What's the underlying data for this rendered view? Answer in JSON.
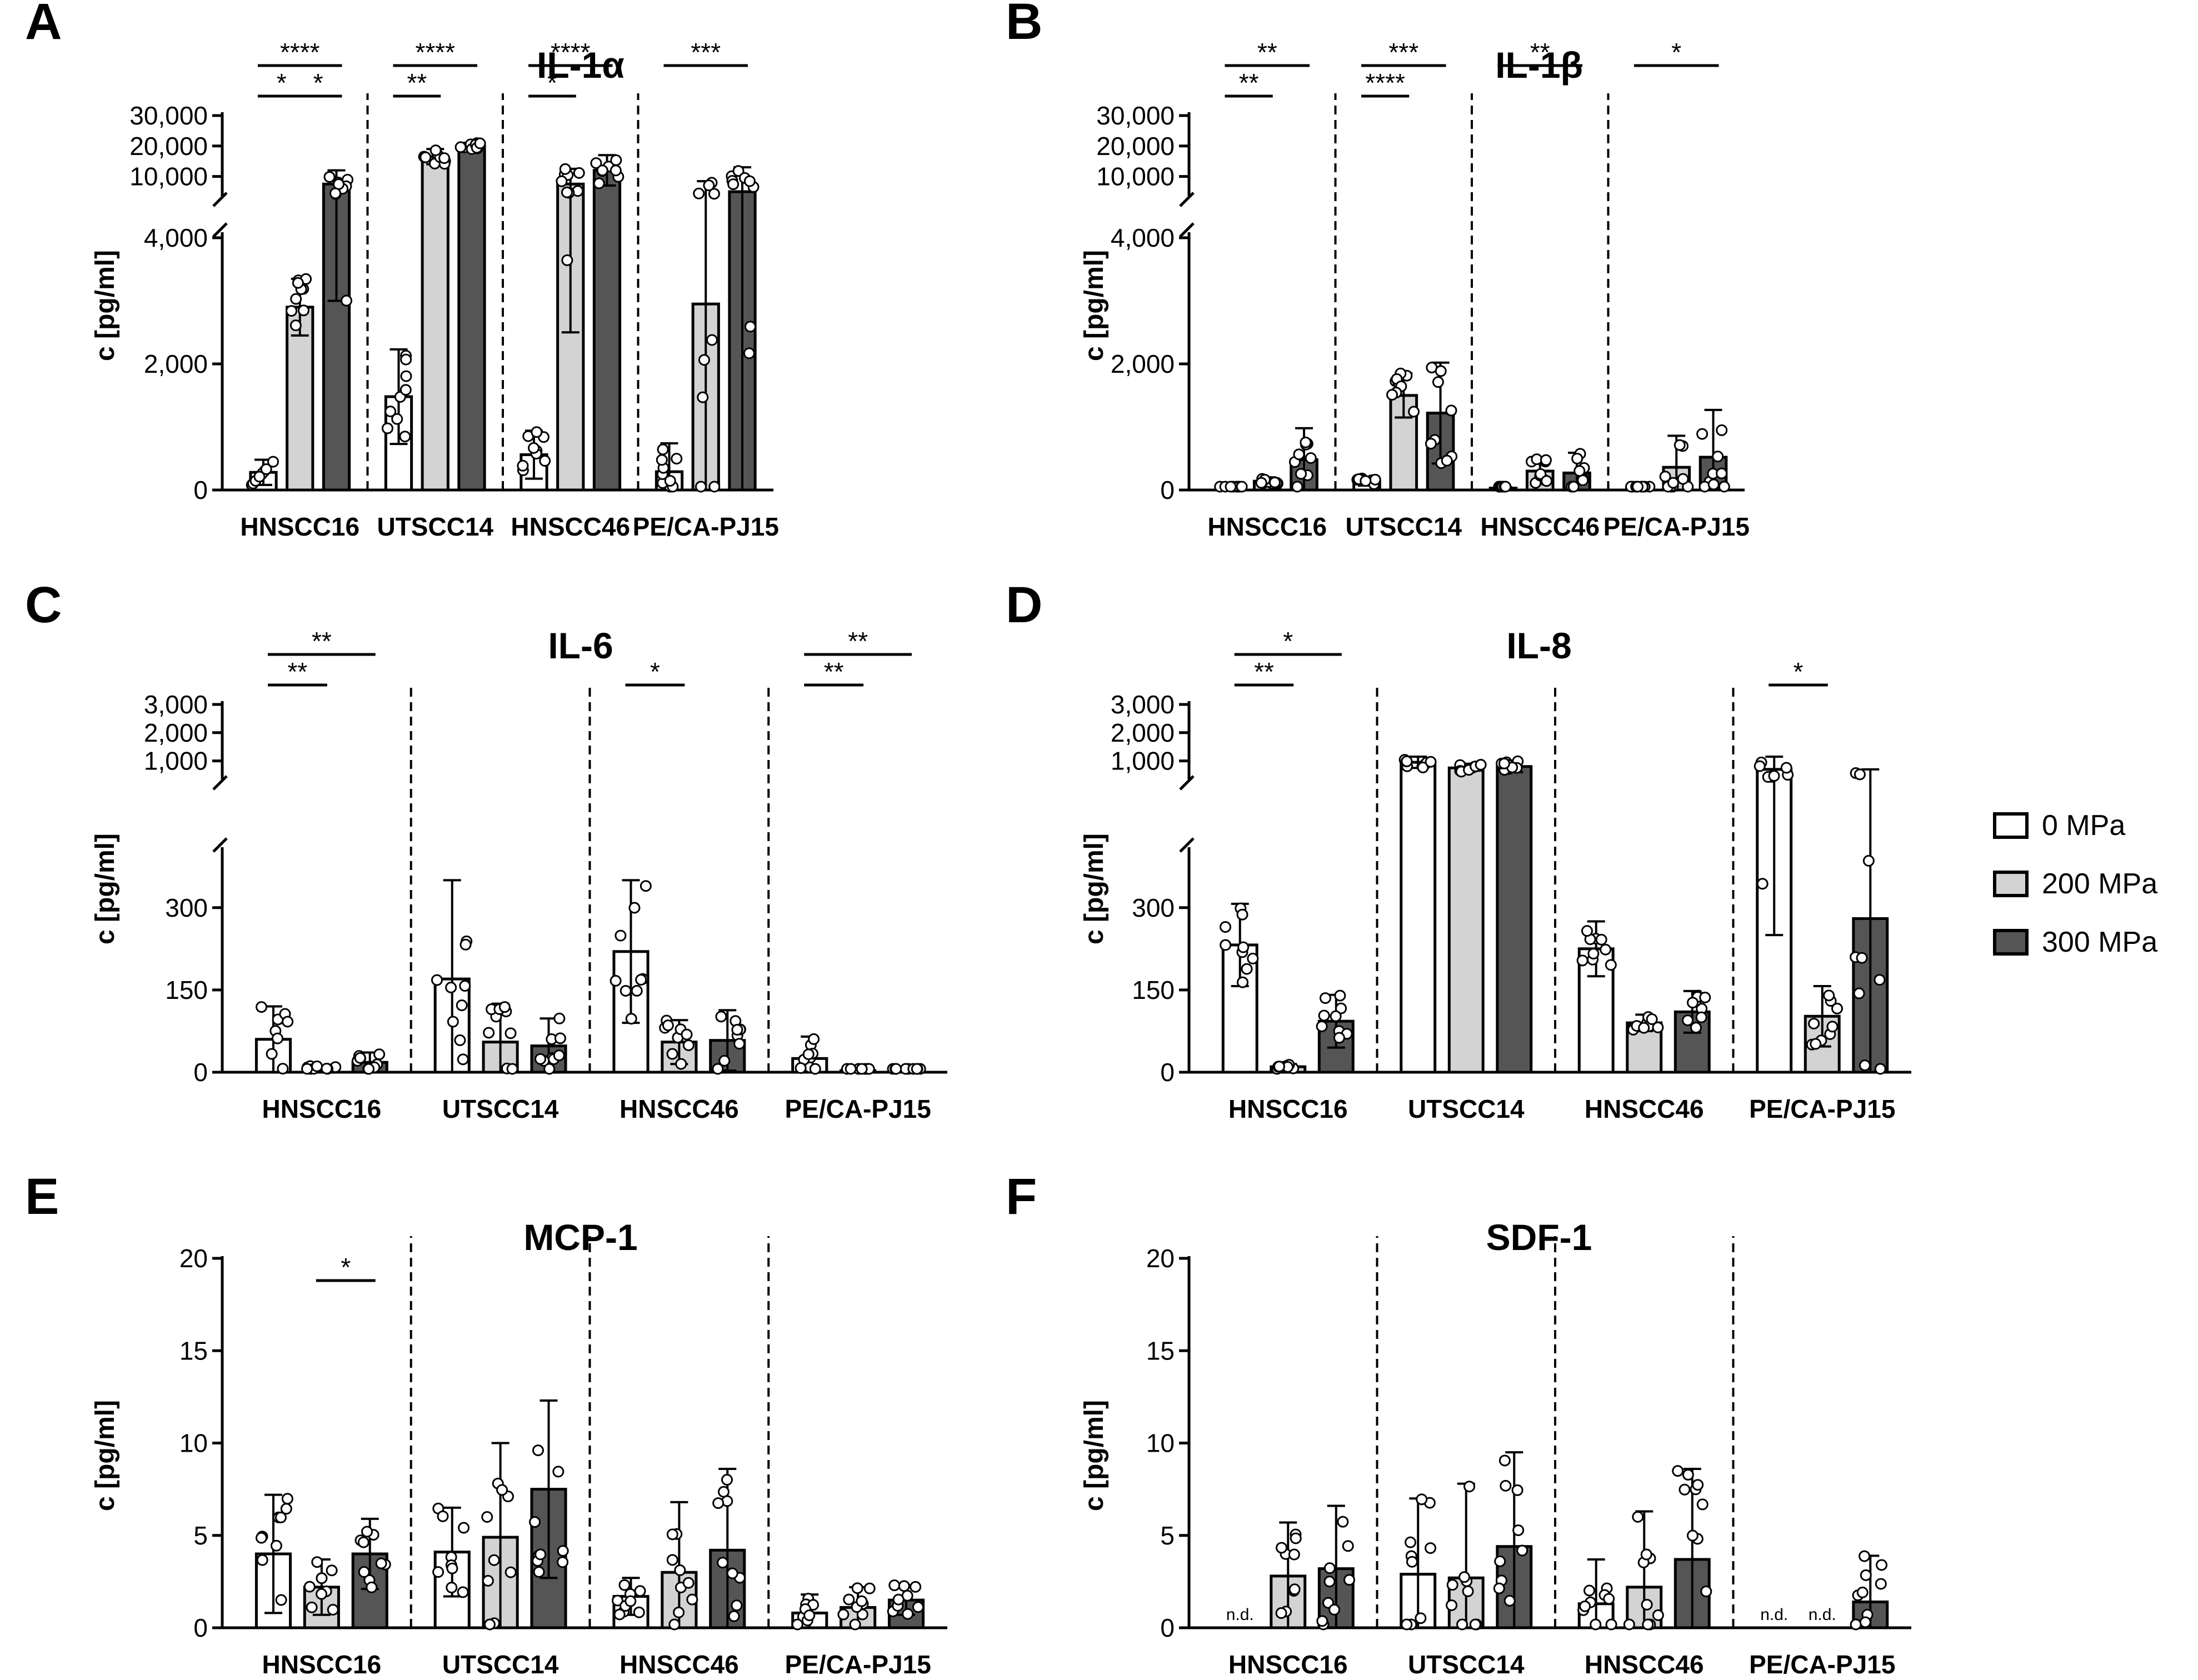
{
  "figure": {
    "groups": [
      "HNSCC16",
      "UTSCC14",
      "HNSCC46",
      "PE/CA-PJ15"
    ],
    "legend": {
      "items": [
        {
          "label": "0 MPa",
          "color": "#ffffff"
        },
        {
          "label": "200 MPa",
          "color": "#d3d3d3"
        },
        {
          "label": "300 MPa",
          "color": "#555555"
        }
      ]
    },
    "ylabel": "c [pg/ml]",
    "nd_label": "n.d."
  },
  "chart_data": [
    {
      "panel": "A",
      "title": "IL-1α",
      "type": "bar",
      "ylabel": "c [pg/ml]",
      "categories": [
        "HNSCC16",
        "UTSCC14",
        "HNSCC46",
        "PE/CA-PJ15"
      ],
      "axis_broken": true,
      "lower_ticks": [
        0,
        2000,
        4000
      ],
      "lower_tick_labels": [
        "0",
        "2,000",
        "4,000"
      ],
      "lower_range": [
        0,
        4000
      ],
      "upper_ticks": [
        10000,
        20000,
        30000
      ],
      "upper_tick_labels": [
        "10,000",
        "20,000",
        "30,000"
      ],
      "upper_range": [
        5000,
        30000
      ],
      "series": [
        {
          "name": "0 MPa",
          "values": [
            280,
            1480,
            560,
            290
          ],
          "err": [
            200,
            750,
            380,
            450
          ]
        },
        {
          "name": "200 MPa",
          "values": [
            2900,
            16500,
            7500,
            2950
          ],
          "err": [
            450,
            2500,
            5000,
            5500
          ]
        },
        {
          "name": "300 MPa",
          "values": [
            7500,
            20000,
            12000,
            5000
          ],
          "err": [
            4500,
            1000,
            5000,
            8000
          ]
        }
      ],
      "significance": [
        {
          "g": 0,
          "from": 0,
          "to": 2,
          "label": "****",
          "row": 2
        },
        {
          "g": 0,
          "from": 0,
          "to": 1,
          "label": "*",
          "row": 1
        },
        {
          "g": 0,
          "from": 1,
          "to": 2,
          "label": "*",
          "row": 1
        },
        {
          "g": 1,
          "from": 0,
          "to": 2,
          "label": "****",
          "row": 2
        },
        {
          "g": 1,
          "from": 0,
          "to": 1,
          "label": "**",
          "row": 1
        },
        {
          "g": 2,
          "from": 0,
          "to": 2,
          "label": "****",
          "row": 2
        },
        {
          "g": 2,
          "from": 0,
          "to": 1,
          "label": "*",
          "row": 1
        },
        {
          "g": 3,
          "from": 0,
          "to": 2,
          "label": "***",
          "row": 2
        }
      ]
    },
    {
      "panel": "B",
      "title": "IL-1β",
      "type": "bar",
      "ylabel": "c [pg/ml]",
      "categories": [
        "HNSCC16",
        "UTSCC14",
        "HNSCC46",
        "PE/CA-PJ15"
      ],
      "axis_broken": true,
      "lower_ticks": [
        0,
        2000,
        4000
      ],
      "lower_tick_labels": [
        "0",
        "2,000",
        "4,000"
      ],
      "lower_range": [
        0,
        4000
      ],
      "upper_ticks": [
        10000,
        20000,
        30000
      ],
      "upper_tick_labels": [
        "10,000",
        "20,000",
        "30,000"
      ],
      "upper_range": [
        5000,
        30000
      ],
      "series": [
        {
          "name": "0 MPa",
          "values": [
            30,
            130,
            30,
            20
          ],
          "err": [
            20,
            60,
            15,
            15
          ]
        },
        {
          "name": "200 MPa",
          "values": [
            140,
            1500,
            300,
            360
          ],
          "err": [
            60,
            350,
            200,
            500
          ]
        },
        {
          "name": "300 MPa",
          "values": [
            480,
            1220,
            270,
            520
          ],
          "err": [
            500,
            800,
            320,
            750
          ]
        }
      ],
      "significance": [
        {
          "g": 0,
          "from": 0,
          "to": 2,
          "label": "**",
          "row": 2
        },
        {
          "g": 0,
          "from": 0,
          "to": 1,
          "label": "**",
          "row": 1
        },
        {
          "g": 1,
          "from": 0,
          "to": 2,
          "label": "***",
          "row": 2
        },
        {
          "g": 1,
          "from": 0,
          "to": 1,
          "label": "****",
          "row": 1
        },
        {
          "g": 2,
          "from": 0,
          "to": 2,
          "label": "**",
          "row": 2
        },
        {
          "g": 3,
          "from": 0,
          "to": 2,
          "label": "*",
          "row": 2
        }
      ]
    },
    {
      "panel": "C",
      "title": "IL-6",
      "type": "bar",
      "ylabel": "c [pg/ml]",
      "categories": [
        "HNSCC16",
        "UTSCC14",
        "HNSCC46",
        "PE/CA-PJ15"
      ],
      "axis_broken": true,
      "lower_ticks": [
        0,
        150,
        300
      ],
      "lower_tick_labels": [
        "0",
        "150",
        "300"
      ],
      "lower_range": [
        0,
        400
      ],
      "upper_ticks": [
        1000,
        2000,
        3000
      ],
      "upper_tick_labels": [
        "1,000",
        "2,000",
        "3,000"
      ],
      "upper_range": [
        500,
        3000
      ],
      "series": [
        {
          "name": "0 MPa",
          "values": [
            60,
            170,
            220,
            25
          ],
          "err": [
            60,
            180,
            130,
            40
          ]
        },
        {
          "name": "200 MPa",
          "values": [
            8,
            55,
            55,
            3
          ],
          "err": [
            4,
            70,
            40,
            2
          ]
        },
        {
          "name": "300 MPa",
          "values": [
            18,
            48,
            58,
            3
          ],
          "err": [
            18,
            50,
            55,
            2
          ]
        }
      ],
      "significance": [
        {
          "g": 0,
          "from": 0,
          "to": 2,
          "label": "**",
          "row": 2
        },
        {
          "g": 0,
          "from": 0,
          "to": 1,
          "label": "**",
          "row": 1
        },
        {
          "g": 2,
          "from": 0,
          "to": 1,
          "label": "*",
          "row": 1
        },
        {
          "g": 3,
          "from": 0,
          "to": 2,
          "label": "**",
          "row": 2
        },
        {
          "g": 3,
          "from": 0,
          "to": 1,
          "label": "**",
          "row": 1
        }
      ]
    },
    {
      "panel": "D",
      "title": "IL-8",
      "type": "bar",
      "ylabel": "c [pg/ml]",
      "categories": [
        "HNSCC16",
        "UTSCC14",
        "HNSCC46",
        "PE/CA-PJ15"
      ],
      "axis_broken": true,
      "lower_ticks": [
        0,
        150,
        300
      ],
      "lower_tick_labels": [
        "0",
        "150",
        "300"
      ],
      "lower_range": [
        0,
        400
      ],
      "upper_ticks": [
        1000,
        2000,
        3000
      ],
      "upper_tick_labels": [
        "1,000",
        "2,000",
        "3,000"
      ],
      "upper_range": [
        500,
        3000
      ],
      "series": [
        {
          "name": "0 MPa",
          "values": [
            232,
            950,
            225,
            700
          ],
          "err": [
            75,
            200,
            50,
            450
          ]
        },
        {
          "name": "200 MPa",
          "values": [
            10,
            750,
            90,
            102
          ],
          "err": [
            5,
            150,
            15,
            55
          ]
        },
        {
          "name": "300 MPa",
          "values": [
            93,
            800,
            110,
            280
          ],
          "err": [
            48,
            200,
            38,
            420
          ]
        }
      ],
      "significance": [
        {
          "g": 0,
          "from": 0,
          "to": 2,
          "label": "*",
          "row": 2
        },
        {
          "g": 0,
          "from": 0,
          "to": 1,
          "label": "**",
          "row": 1
        },
        {
          "g": 3,
          "from": 0,
          "to": 1,
          "label": "*",
          "row": 1
        }
      ]
    },
    {
      "panel": "E",
      "title": "MCP-1",
      "type": "bar",
      "ylabel": "c [pg/ml]",
      "categories": [
        "HNSCC16",
        "UTSCC14",
        "HNSCC46",
        "PE/CA-PJ15"
      ],
      "axis_broken": false,
      "ticks": [
        0,
        5,
        10,
        15,
        20
      ],
      "tick_labels": [
        "0",
        "5",
        "10",
        "15",
        "20"
      ],
      "ylim": [
        0,
        20
      ],
      "series": [
        {
          "name": "0 MPa",
          "values": [
            4.0,
            4.1,
            1.7,
            0.8
          ],
          "err": [
            3.2,
            2.4,
            1.0,
            1.0
          ]
        },
        {
          "name": "200 MPa",
          "values": [
            2.2,
            4.9,
            3.0,
            1.1
          ],
          "err": [
            1.5,
            5.1,
            3.8,
            1.1
          ]
        },
        {
          "name": "300 MPa",
          "values": [
            4.0,
            7.5,
            4.2,
            1.5
          ],
          "err": [
            1.9,
            4.8,
            4.4,
            0.8
          ]
        }
      ],
      "significance": [
        {
          "g": 0,
          "from": 1,
          "to": 2,
          "label": "*",
          "row": 0
        }
      ]
    },
    {
      "panel": "F",
      "title": "SDF-1",
      "type": "bar",
      "ylabel": "c [pg/ml]",
      "categories": [
        "HNSCC16",
        "UTSCC14",
        "HNSCC46",
        "PE/CA-PJ15"
      ],
      "axis_broken": false,
      "ticks": [
        0,
        5,
        10,
        15,
        20
      ],
      "tick_labels": [
        "0",
        "5",
        "10",
        "15",
        "20"
      ],
      "ylim": [
        0,
        20
      ],
      "series": [
        {
          "name": "0 MPa",
          "values": [
            0,
            2.9,
            1.3,
            0
          ],
          "err": [
            0,
            4.1,
            2.4,
            0
          ],
          "nd": [
            true,
            false,
            false,
            true
          ]
        },
        {
          "name": "200 MPa",
          "values": [
            2.8,
            2.7,
            2.2,
            0
          ],
          "err": [
            2.9,
            5.1,
            4.1,
            0
          ],
          "nd": [
            false,
            false,
            false,
            true
          ]
        },
        {
          "name": "300 MPa",
          "values": [
            3.2,
            4.4,
            3.7,
            1.4
          ],
          "err": [
            3.4,
            5.1,
            4.9,
            2.5
          ]
        }
      ],
      "significance": []
    }
  ]
}
